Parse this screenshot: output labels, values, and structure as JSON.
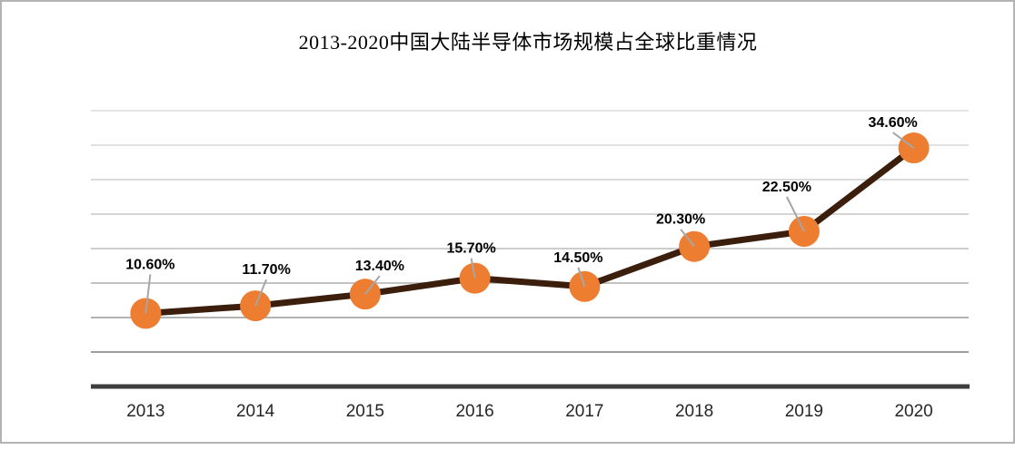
{
  "title": "2013-2020中国大陆半导体市场规模占全球比重情况",
  "chart_data": {
    "type": "line",
    "title": "2013-2020中国大陆半导体市场规模占全球比重情况",
    "categories": [
      "2013",
      "2014",
      "2015",
      "2016",
      "2017",
      "2018",
      "2019",
      "2020"
    ],
    "values": [
      10.6,
      11.7,
      13.4,
      15.7,
      14.5,
      20.3,
      22.5,
      34.6
    ],
    "labels": [
      "10.60%",
      "11.70%",
      "13.40%",
      "15.70%",
      "14.50%",
      "20.30%",
      "22.50%",
      "34.60%"
    ],
    "xlabel": "",
    "ylabel": "",
    "ylim": [
      0,
      40
    ],
    "grid_step": 5,
    "grid": true,
    "legend": "none",
    "y_axis_labels_visible": false,
    "colors": {
      "marker": "#ED7D31",
      "line": "#3B1E0C",
      "leader": "#A6A6A6",
      "axis": "#3D3D3D",
      "label_text": "#000000",
      "tick_text": "#262626",
      "grid_shades_bottom_to_top": [
        "#9d9d9d",
        "#b3b3b3",
        "#c3c3c3",
        "#cdcdcd",
        "#d5d5d5",
        "#dbdbdb",
        "#e1e1e1",
        "#e5e5e5"
      ]
    }
  }
}
